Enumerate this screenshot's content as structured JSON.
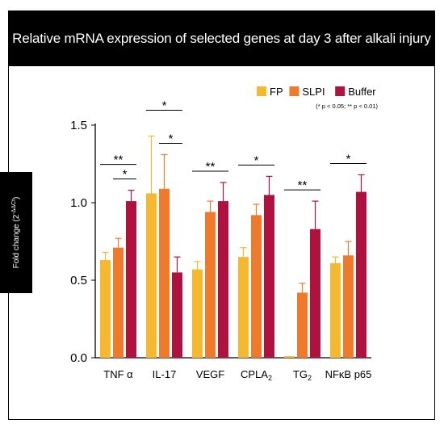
{
  "chart_data": {
    "type": "bar",
    "title": "Relative mRNA expression of selected genes at day 3 after alkali injury",
    "ylabel_main": "Fold change (2",
    "ylabel_sup": "-ΔΔCt",
    "ylabel_close": ")",
    "ylim": [
      0,
      1.5
    ],
    "yticks": [
      "0.0",
      "0.5",
      "1.0",
      "1.5"
    ],
    "categories": [
      "TNF α",
      "IL-17",
      "VEGF",
      "CPLA2",
      "TG2",
      "NFκB p65"
    ],
    "series": [
      {
        "name": "FP",
        "color": "#F5B82E",
        "values": [
          0.63,
          1.06,
          0.57,
          0.65,
          0.01,
          0.61
        ],
        "errors": [
          0.05,
          0.37,
          0.05,
          0.06,
          0.0,
          0.04
        ]
      },
      {
        "name": "SLPI",
        "color": "#F07A2C",
        "values": [
          0.71,
          1.09,
          0.94,
          0.92,
          0.42,
          0.66
        ],
        "errors": [
          0.06,
          0.22,
          0.07,
          0.07,
          0.06,
          0.09
        ]
      },
      {
        "name": "Buffer",
        "color": "#B0123F",
        "values": [
          1.01,
          0.55,
          1.01,
          1.05,
          0.83,
          1.07
        ],
        "errors": [
          0.07,
          0.1,
          0.12,
          0.12,
          0.18,
          0.11
        ]
      }
    ],
    "significance": [
      {
        "category": 0,
        "pairs": [
          [
            0,
            2,
            "**"
          ],
          [
            1,
            2,
            "*"
          ]
        ]
      },
      {
        "category": 1,
        "pairs": [
          [
            0,
            2,
            "*"
          ],
          [
            1,
            2,
            "*"
          ]
        ]
      },
      {
        "category": 2,
        "pairs": [
          [
            0,
            2,
            "**"
          ]
        ]
      },
      {
        "category": 3,
        "pairs": [
          [
            0,
            2,
            "*"
          ]
        ]
      },
      {
        "category": 4,
        "pairs": [
          [
            0,
            2,
            "**"
          ]
        ]
      },
      {
        "category": 5,
        "pairs": [
          [
            0,
            2,
            "*"
          ]
        ]
      }
    ],
    "legend_note": "(* p < 0.05; ** p < 0.01)",
    "legend_position": "top-right",
    "grid": false
  }
}
